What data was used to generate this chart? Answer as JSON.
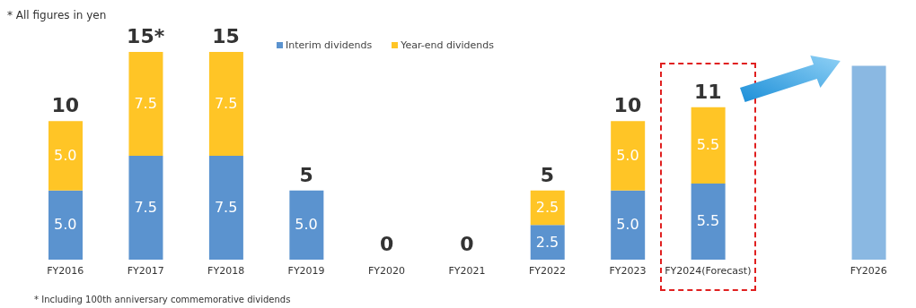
{
  "chart_data": {
    "type": "bar",
    "stacked": true,
    "data_labels": false,
    "legend": "top",
    "categories": [
      "FY2016",
      "FY2017",
      "FY2018",
      "FY2019",
      "FY2020",
      "FY2021",
      "FY2022",
      "FY2023",
      "FY2024(Forecast)",
      null,
      "FY2026"
    ],
    "series": [
      {
        "name": "Interim dividends",
        "color": "#5b93cf",
        "values": [
          5.0,
          7.5,
          7.5,
          5.0,
          0,
          0,
          2.5,
          5.0,
          5.5,
          null,
          null
        ],
        "value_labels": [
          "5.0",
          "7.5",
          "7.5",
          "5.0",
          null,
          null,
          "2.5",
          "5.0",
          "5.5",
          null,
          null
        ]
      },
      {
        "name": "Year-end dividends",
        "color": "#ffc526",
        "values": [
          5.0,
          7.5,
          7.5,
          null,
          0,
          0,
          2.5,
          5.0,
          5.5,
          null,
          null
        ],
        "value_labels": [
          "5.0",
          "7.5",
          "7.5",
          null,
          null,
          null,
          "2.5",
          "5.0",
          "5.5",
          null,
          null
        ]
      },
      {
        "color": "#8ab8e2",
        "values": [
          null,
          null,
          null,
          null,
          null,
          null,
          null,
          null,
          null,
          null,
          14
        ]
      }
    ],
    "totals": [
      "10",
      "15*",
      "15",
      "5",
      "0",
      "0",
      "5",
      "10",
      "11",
      null,
      null
    ],
    "annotations": [
      "* All figures in yen",
      "* Including 100th anniversary commemorative dividends"
    ]
  }
}
